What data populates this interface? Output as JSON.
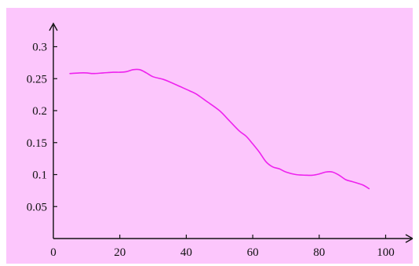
{
  "chart_data": {
    "type": "line",
    "title": "",
    "xlabel": "",
    "ylabel": "",
    "xlim": [
      0,
      105
    ],
    "ylim": [
      0,
      0.32
    ],
    "x_ticks": [
      0,
      20,
      40,
      60,
      80,
      100
    ],
    "x_tick_labels": [
      "0",
      "20",
      "40",
      "60",
      "80",
      "100"
    ],
    "y_ticks": [
      0.05,
      0.1,
      0.15,
      0.2,
      0.25,
      0.3
    ],
    "y_tick_labels": [
      "0.05",
      "0.1",
      "0.15",
      "0.2",
      "0.25",
      "0.3"
    ],
    "grid": false,
    "colors": {
      "background": "#fcc6fc",
      "line": "#ee22ee",
      "axis": "#111111"
    },
    "series": [
      {
        "x": [
          5,
          8,
          10,
          12,
          15,
          18,
          20,
          22,
          24,
          26,
          28,
          30,
          33,
          35,
          38,
          41,
          43,
          46,
          50,
          53,
          56,
          58,
          60,
          62,
          64,
          66,
          68,
          70,
          73,
          76,
          78,
          80,
          82,
          84,
          86,
          88,
          90,
          93,
          95
        ],
        "y": [
          0.258,
          0.259,
          0.259,
          0.258,
          0.259,
          0.26,
          0.26,
          0.261,
          0.264,
          0.264,
          0.259,
          0.253,
          0.249,
          0.245,
          0.238,
          0.231,
          0.226,
          0.215,
          0.2,
          0.184,
          0.168,
          0.16,
          0.148,
          0.135,
          0.12,
          0.112,
          0.109,
          0.104,
          0.1,
          0.099,
          0.099,
          0.101,
          0.104,
          0.104,
          0.099,
          0.092,
          0.089,
          0.084,
          0.078
        ]
      }
    ]
  }
}
